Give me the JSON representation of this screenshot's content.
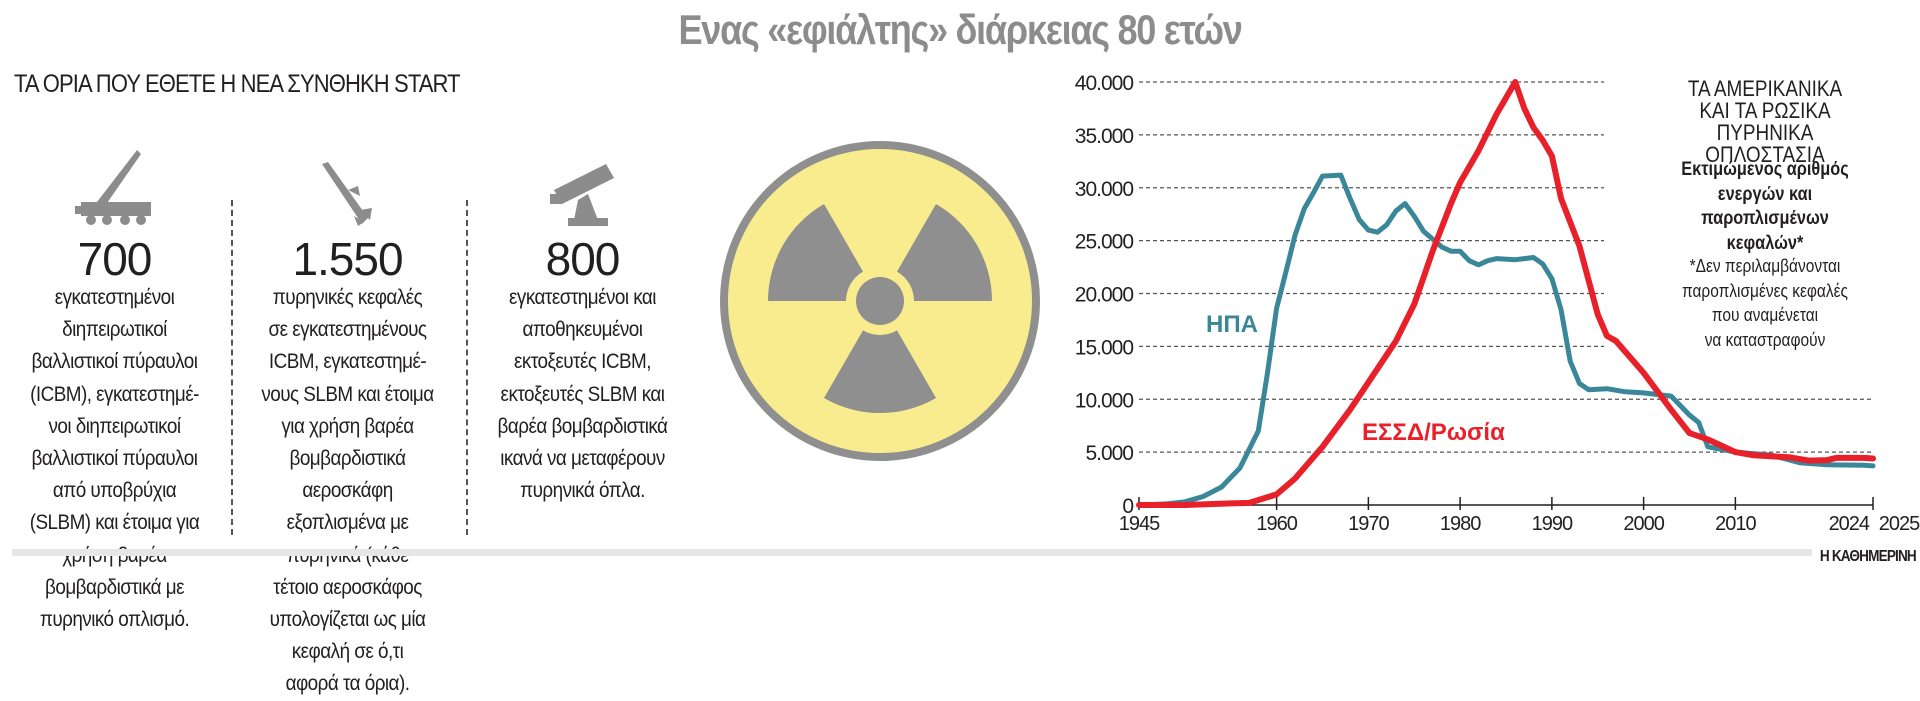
{
  "title": "Ενας «εφιάλτης» διάρκειας 80 ετών",
  "left_panel": {
    "heading": "ΤΑ ΟΡΙΑ ΠΟΥ ΕΘΕΤΕ Η ΝΕΑ ΣΥΝΘΗΚΗ START",
    "columns": [
      {
        "icon": "missile-launcher-truck-icon",
        "number": "700",
        "lines": [
          "εγκατεστημένοι",
          "διηπειρωτικοί",
          "βαλλιστικοί πύραυλοι",
          "(ICBM), εγκατεστημέ-",
          "νοι διηπειρωτικοί",
          "βαλλιστικοί πύραυλοι",
          "από υποβρύχια",
          "(SLBM) και έτοιμα για",
          "χρήση βαρέα",
          "βομβαρδιστικά με",
          "πυρηνικό οπλισμό."
        ]
      },
      {
        "icon": "warhead-missile-icon",
        "number": "1.550",
        "lines": [
          "πυρηνικές κεφαλές",
          "σε εγκατεστημένους",
          "ICBM, εγκατεστημέ-",
          "νους SLBM και έτοιμα",
          "για χρήση βαρέα",
          "βομβαρδιστικά",
          "αεροσκάφη",
          "εξοπλισμένα με",
          "πυρηνικά (κάθε",
          "τέτοιο αεροσκάφος",
          "υπολογίζεται ως μία",
          "κεφαλή σε ό,τι",
          "αφορά τα όρια)."
        ]
      },
      {
        "icon": "rocket-launcher-icon",
        "number": "800",
        "lines": [
          "εγκατεστημένοι και",
          "αποθηκευμένοι",
          "εκτοξευτές ICBM,",
          "εκτοξευτές SLBM και",
          "βαρέα βομβαρδιστικά",
          "ικανά να μεταφέρουν",
          "πυρηνικά όπλα."
        ]
      }
    ]
  },
  "radiation_symbol": {
    "icon": "radiation-trefoil-icon",
    "fill": "#f8ec8e",
    "gray": "#8f8f8f"
  },
  "right_panel": {
    "title_lines": [
      "ΤΑ ΑΜΕΡΙΚΑΝΙΚΑ",
      "ΚΑΙ ΤΑ ΡΩΣΙΚΑ ΠΥΡΗΝΙΚΑ",
      "ΟΠΛΟΣΤΑΣΙΑ"
    ],
    "subtitle_lines": [
      "Εκτιμώμενος αριθμός",
      "ενεργών και παροπλισμένων",
      "κεφαλών*"
    ],
    "note_lines": [
      "*Δεν περιλαμβάνονται",
      "παροπλισμένες κεφαλές",
      "που αναμένεται",
      "να καταστραφούν"
    ]
  },
  "credit": "Η ΚΑΘΗΜΕΡΙΝΗ",
  "chart_data": {
    "type": "line",
    "title": "Εκτιμώμενος αριθμός ενεργών και παροπλισμένων κεφαλών",
    "xlim": [
      1945,
      2025
    ],
    "ylim": [
      0,
      40000
    ],
    "x_ticks": [
      1945,
      1960,
      1970,
      1980,
      1990,
      2000,
      2010,
      2024,
      2025
    ],
    "y_ticks": [
      0,
      5000,
      10000,
      15000,
      20000,
      25000,
      30000,
      35000,
      40000
    ],
    "y_tick_labels": [
      "0",
      "5.000",
      "10.000",
      "15.000",
      "20.000",
      "25.000",
      "30.000",
      "35.000",
      "40.000"
    ],
    "grid": "horizontal dashed",
    "series": [
      {
        "name": "ΗΠΑ",
        "color": "#3a8799",
        "x": [
          1945,
          1948,
          1950,
          1952,
          1954,
          1956,
          1958,
          1959,
          1960,
          1961,
          1962,
          1963,
          1964,
          1965,
          1967,
          1968,
          1969,
          1970,
          1971,
          1972,
          1973,
          1974,
          1975,
          1976,
          1978,
          1979,
          1980,
          1981,
          1982,
          1983,
          1984,
          1986,
          1987,
          1988,
          1989,
          1990,
          1991,
          1992,
          1993,
          1994,
          1996,
          1998,
          2000,
          2003,
          2005,
          2006,
          2007,
          2010,
          2014,
          2017,
          2020,
          2024,
          2025
        ],
        "y": [
          0,
          100,
          300,
          800,
          1700,
          3500,
          7000,
          12500,
          18600,
          22000,
          25500,
          28000,
          29500,
          31100,
          31200,
          29000,
          27000,
          26000,
          25800,
          26500,
          27800,
          28500,
          27300,
          25900,
          24400,
          24000,
          24000,
          23100,
          22700,
          23100,
          23300,
          23200,
          23300,
          23400,
          22800,
          21400,
          18500,
          13600,
          11500,
          10900,
          11000,
          10700,
          10600,
          10300,
          8500,
          7800,
          5500,
          5000,
          4700,
          4000,
          3800,
          3750,
          3700
        ]
      },
      {
        "name": "ΕΣΣΔ/Ρωσία",
        "color": "#e8202a",
        "x": [
          1945,
          1950,
          1955,
          1957,
          1960,
          1962,
          1965,
          1968,
          1970,
          1973,
          1975,
          1977,
          1979,
          1980,
          1982,
          1984,
          1986,
          1987,
          1988,
          1989,
          1990,
          1991,
          1993,
          1995,
          1996,
          1997,
          2000,
          2003,
          2005,
          2007,
          2010,
          2012,
          2016,
          2018,
          2020,
          2021,
          2024,
          2025
        ],
        "y": [
          0,
          0,
          150,
          200,
          1000,
          2500,
          5500,
          9000,
          11600,
          15500,
          19000,
          24000,
          28500,
          30500,
          33500,
          37000,
          40000,
          37500,
          35700,
          34500,
          33000,
          29000,
          24500,
          18000,
          16000,
          15500,
          12500,
          9000,
          6800,
          6200,
          5000,
          4700,
          4500,
          4200,
          4250,
          4450,
          4450,
          4400
        ]
      }
    ],
    "annotations": [
      "ΗΠΑ",
      "ΕΣΣΔ/Ρωσία"
    ]
  }
}
